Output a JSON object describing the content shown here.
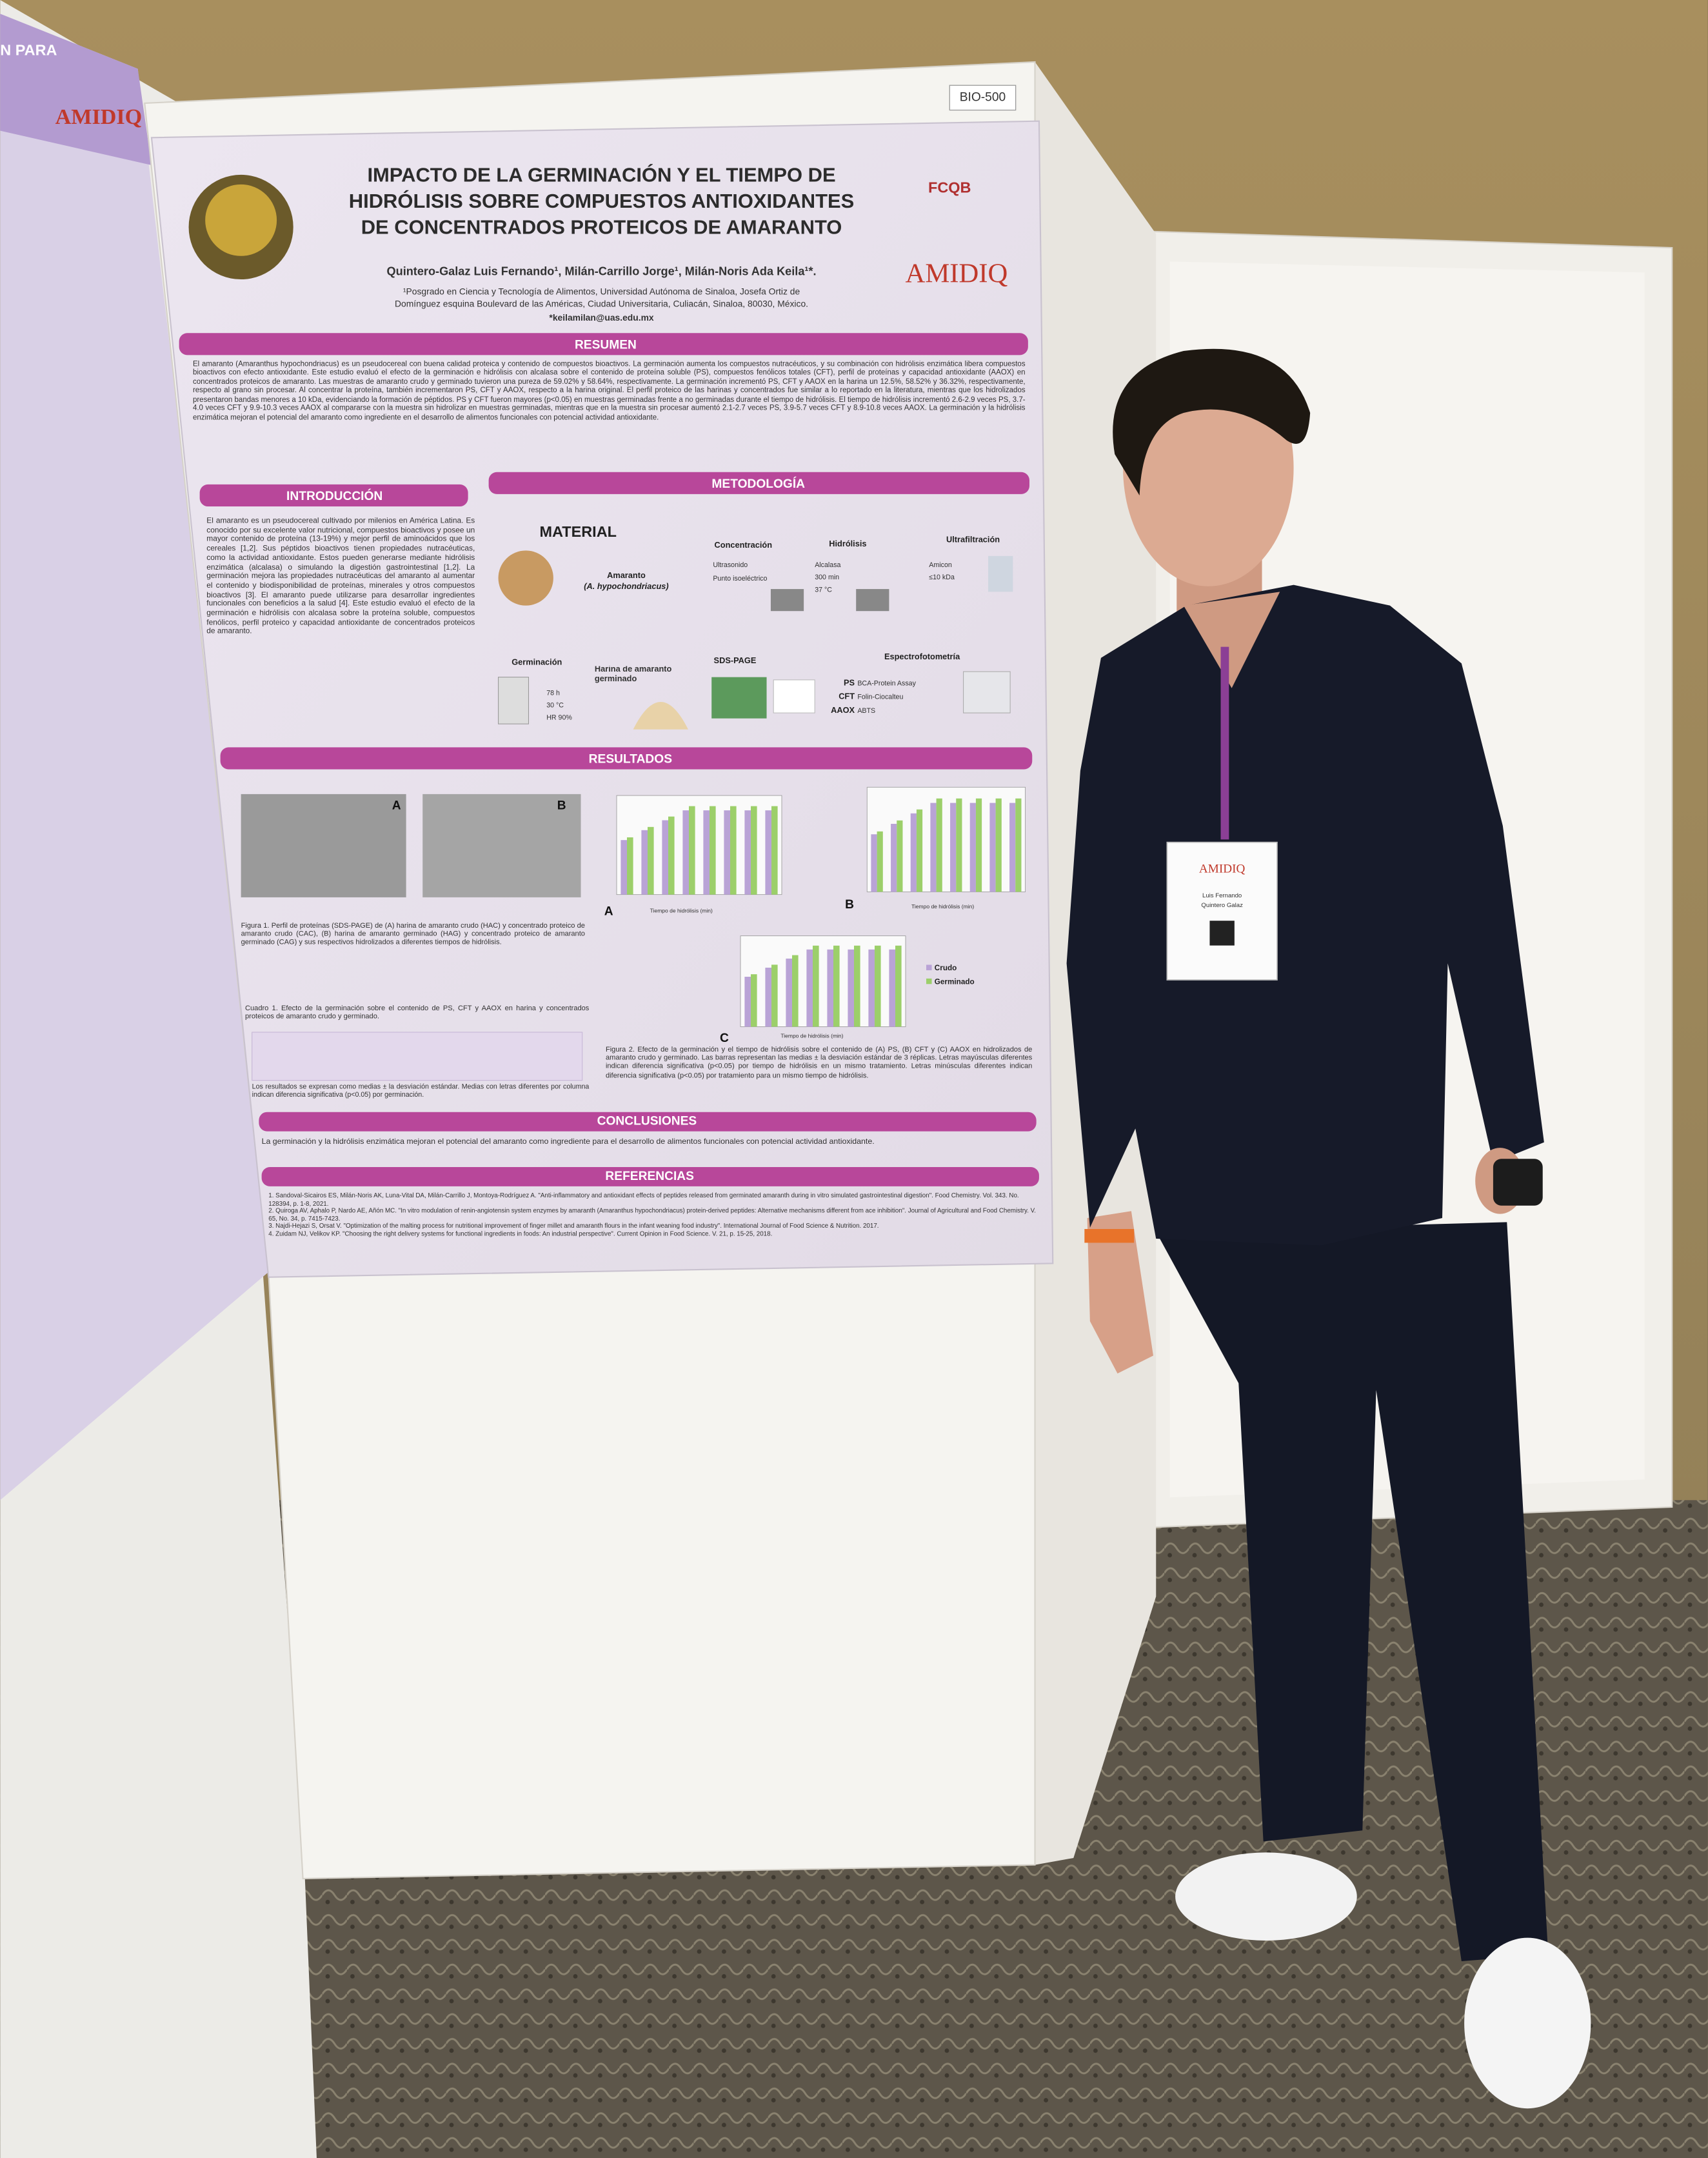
{
  "booth_label": "BIO-500",
  "side_poster": {
    "logo": "AMIDIQ",
    "title_fragment": "N PARA"
  },
  "poster": {
    "title": [
      "IMPACTO DE LA GERMINACIÓN Y EL TIEMPO DE",
      "HIDRÓLISIS SOBRE COMPUESTOS ANTIOXIDANTES",
      "DE CONCENTRADOS PROTEICOS DE AMARANTO"
    ],
    "authors": "Quintero-Galaz Luis Fernando¹, Milán-Carrillo Jorge¹, Milán-Noris Ada Keila¹*.",
    "affiliation": [
      "¹Posgrado en Ciencia y Tecnología de Alimentos, Universidad Autónoma de Sinaloa, Josefa Ortiz de",
      "Domínguez esquina Boulevard de las Américas, Ciudad Universitaria, Culiacán, Sinaloa, 80030, México."
    ],
    "email": "*keilamilan@uas.edu.mx",
    "logos": [
      "FCQB",
      "AMIDIQ"
    ],
    "resumen": {
      "heading": "RESUMEN",
      "text": "El amaranto (Amaranthus hypochondriacus) es un pseudocereal con buena calidad proteica y contenido de compuestos bioactivos. La germinación aumenta los compuestos nutracéuticos, y su combinación con hidrólisis enzimática libera compuestos bioactivos con efecto antioxidante. Este estudio evaluó el efecto de la germinación e hidrólisis con alcalasa sobre el contenido de proteína soluble (PS), compuestos fenólicos totales (CFT), perfil de proteínas y capacidad antioxidante (AAOX) en concentrados proteicos de amaranto. Las muestras de amaranto crudo y germinado tuvieron una pureza de 59.02% y 58.64%, respectivamente. La germinación incrementó PS, CFT y AAOX en la harina un 12.5%, 58.52% y 36.32%, respectivamente, respecto al grano sin procesar. Al concentrar la proteína, también incrementaron PS, CFT y AAOX, respecto a la harina original. El perfil proteico de las harinas y concentrados fue similar a lo reportado en la literatura, mientras que los hidrolizados presentaron bandas menores a 10 kDa, evidenciando la formación de péptidos. PS y CFT fueron mayores (p<0.05) en muestras germinadas frente a no germinadas durante el tiempo de hidrólisis. El tiempo de hidrólisis incrementó 2.6-2.9 veces PS, 3.7-4.0 veces CFT y 9.9-10.3 veces AAOX al compararse con la muestra sin hidrolizar en muestras germinadas, mientras que en la muestra sin procesar aumentó 2.1-2.7 veces PS, 3.9-5.7 veces CFT y 8.9-10.8 veces AAOX. La germinación y la hidrólisis enzimática mejoran el potencial del amaranto como ingrediente en el desarrollo de alimentos funcionales con potencial actividad antioxidante."
    },
    "introduccion": {
      "heading": "INTRODUCCIÓN",
      "text": "El amaranto es un pseudocereal cultivado por milenios en América Latina. Es conocido por su excelente valor nutricional, compuestos bioactivos y posee un mayor contenido de proteína (13-19%) y mejor perfil de aminoácidos que los cereales [1,2]. Sus péptidos bioactivos tienen propiedades nutracéuticas, como la actividad antioxidante. Estos pueden generarse mediante hidrólisis enzimática (alcalasa) o simulando la digestión gastrointestinal [1,2]. La germinación mejora las propiedades nutracéuticas del amaranto al aumentar el contenido y biodisponibilidad de proteínas, minerales y otros compuestos bioactivos [3]. El amaranto puede utilizarse para desarrollar ingredientes funcionales con beneficios a la salud [4]. Este estudio evaluó el efecto de la germinación e hidrólisis con alcalasa sobre la proteína soluble, compuestos fenólicos, perfil proteico y capacidad antioxidante de concentrados proteicos de amaranto."
    },
    "metodologia": {
      "heading": "METODOLOGÍA",
      "material": "MATERIAL",
      "amaranto": [
        "Amaranto",
        "(A. hypochondriacus)"
      ],
      "concentracion": {
        "label": "Concentración",
        "items": [
          "Ultrasonido",
          "Punto isoeléctrico"
        ]
      },
      "hidrolisis": {
        "label": "Hidrólisis",
        "items": [
          "Alcalasa",
          "300 min",
          "37 °C"
        ]
      },
      "ultrafiltracion": {
        "label": "Ultrafiltración",
        "items": [
          "Amicon",
          "≤10 kDa"
        ]
      },
      "germinacion": {
        "label": "Germinación",
        "items": [
          "78 h",
          "30 °C",
          "HR 90%"
        ]
      },
      "harina": "Harina de amaranto germinado",
      "sds": "SDS-PAGE",
      "espectro": {
        "label": "Espectrofotometría",
        "items": [
          [
            "PS",
            "BCA-Protein Assay"
          ],
          [
            "CFT",
            "Folin-Ciocalteu"
          ],
          [
            "AAOX",
            "ABTS"
          ]
        ]
      }
    },
    "resultados": {
      "heading": "RESULTADOS",
      "panels": [
        "A",
        "B",
        "A",
        "B",
        "C"
      ],
      "axis_label": "Tiempo de hidrólisis (min)",
      "legend": [
        "Crudo",
        "Germinado"
      ],
      "figura1": "Figura 1. Perfil de proteínas (SDS-PAGE) de (A) harina de amaranto crudo (HAC) y concentrado proteico de amaranto crudo (CAC), (B) harina de amaranto germinado (HAG) y concentrado proteico de amaranto germinado (CAG) y sus respectivos hidrolizados a diferentes tiempos de hidrólisis.",
      "cuadro1": "Cuadro 1. Efecto de la germinación sobre el contenido de PS, CFT y AAOX en harina y concentrados proteicos de amaranto crudo y germinado.",
      "cuadro_note": "Los resultados se expresan como medias ± la desviación estándar. Medias con letras diferentes por columna indican diferencia significativa (p<0.05) por germinación.",
      "figura2": "Figura 2. Efecto de la germinación y el tiempo de hidrólisis sobre el contenido de (A) PS, (B) CFT y (C) AAOX en hidrolizados de amaranto crudo y germinado. Las barras representan las medias ± la desviación estándar de 3 réplicas. Letras mayúsculas diferentes indican diferencia significativa (p<0.05) por tiempo de hidrólisis en un mismo tratamiento. Letras minúsculas diferentes indican diferencia significativa (p<0.05) por tratamiento para un mismo tiempo de hidrólisis."
    },
    "conclusiones": {
      "heading": "CONCLUSIONES",
      "text": "La germinación y la hidrólisis enzimática mejoran el potencial del amaranto como ingrediente para el desarrollo de alimentos funcionales con potencial actividad antioxidante."
    },
    "referencias": {
      "heading": "REFERENCIAS",
      "items": [
        "1. Sandoval-Sicairos ES, Milán-Noris AK, Luna-Vital DA, Milán-Carrillo J, Montoya-Rodríguez A. \"Anti-inflammatory and antioxidant effects of peptides released from germinated amaranth during in vitro simulated gastrointestinal digestion\". Food Chemistry. Vol. 343. No. 128394, p. 1-8, 2021.",
        "2. Quiroga AV, Aphalo P, Nardo AE, Añón MC. \"In vitro modulation of renin-angiotensin system enzymes by amaranth (Amaranthus hypochondriacus) protein-derived peptides: Alternative mechanisms different from ace inhibition\". Journal of Agricultural and Food Chemistry. V. 65, No. 34, p. 7415-7423.",
        "3. Najdi-Hejazi S, Orsat V. \"Optimization of the malting process for nutritional improvement of finger millet and amaranth flours in the infant weaning food industry\". International Journal of Food Science & Nutrition. 2017.",
        "4. Zuidam NJ, Velikov KP. \"Choosing the right delivery systems for functional ingredients in foods: An industrial perspective\". Current Opinion in Food Science. V. 21, p. 15-25, 2018."
      ]
    }
  },
  "badge": {
    "logo": "AMIDIQ",
    "name": [
      "Luis Fernando",
      "Quintero Galaz"
    ]
  }
}
